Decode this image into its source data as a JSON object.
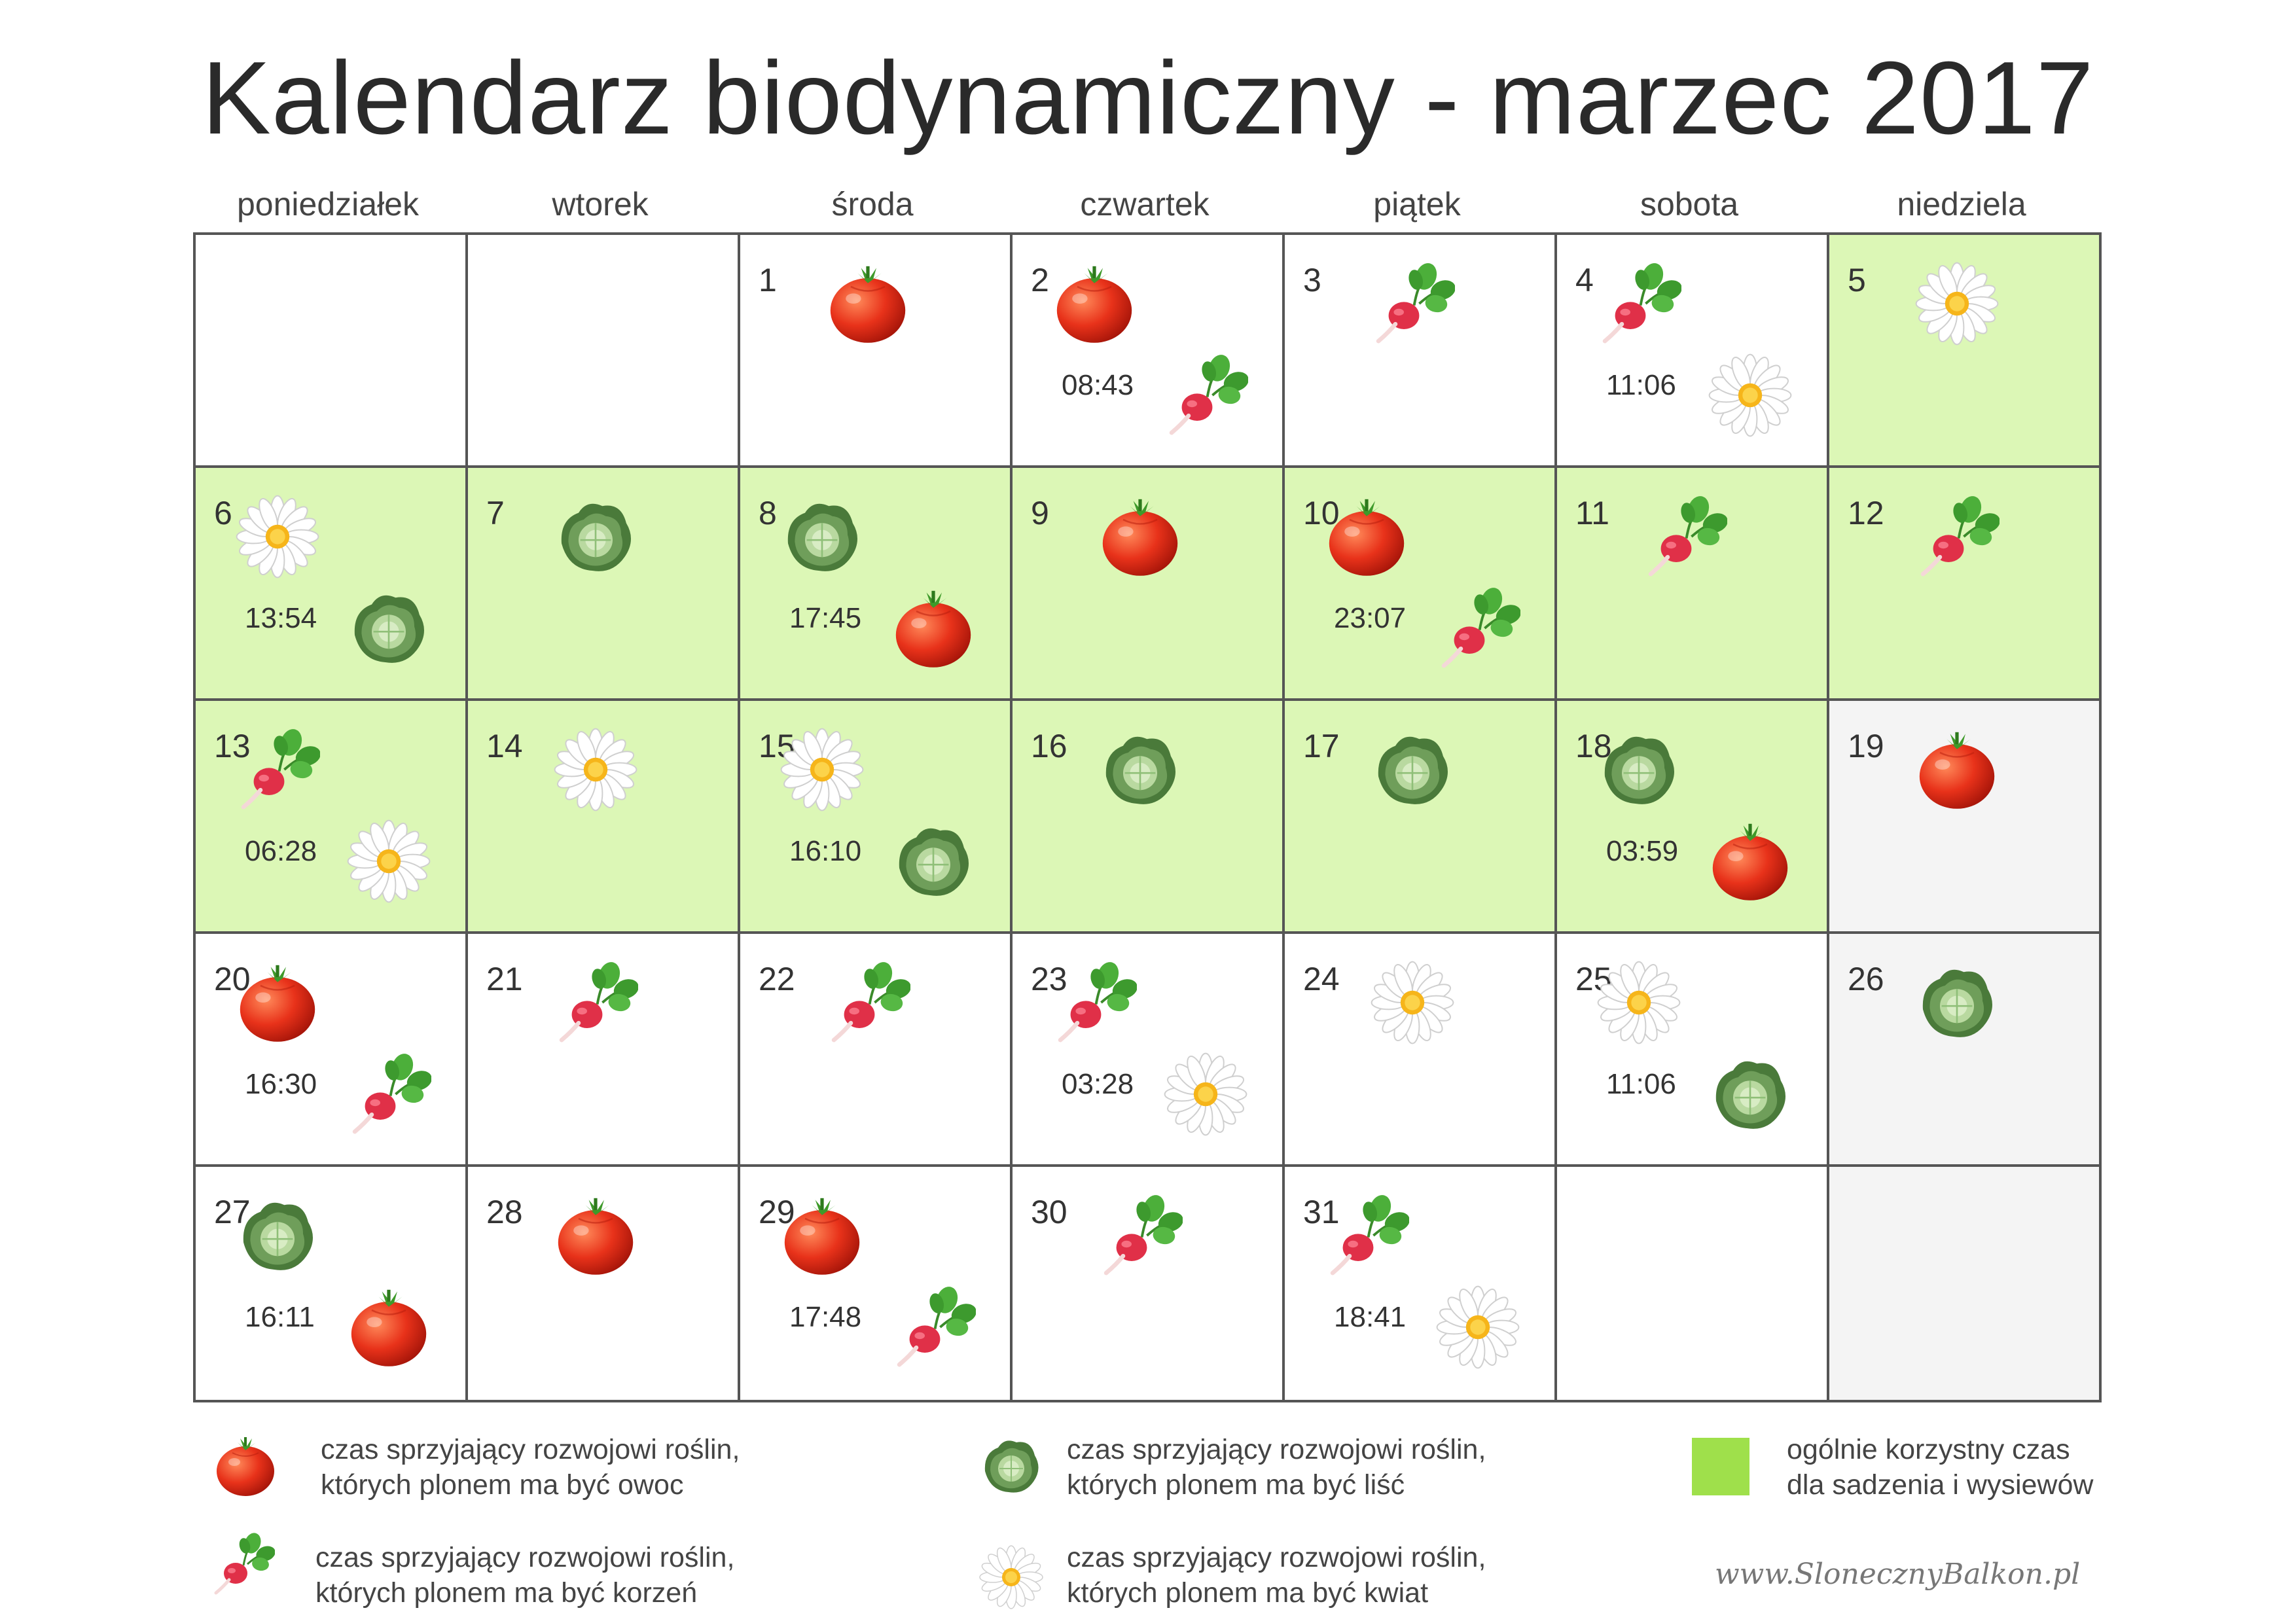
{
  "title": "Kalendarz biodynamiczny - marzec 2017",
  "weekdays": [
    "poniedziałek",
    "wtorek",
    "środa",
    "czwartek",
    "piątek",
    "sobota",
    "niedziela"
  ],
  "colors": {
    "green_cell": "#dcf7b6",
    "gray_cell": "#f4f4f4",
    "legend_green": "#9fe04b"
  },
  "icon_types": {
    "fruit": "tomato-icon",
    "root": "radish-icon",
    "leaf": "cabbage-icon",
    "flower": "daisy-icon"
  },
  "calendar": [
    [
      {
        "day": "",
        "bg": "white",
        "icons": [],
        "time": ""
      },
      {
        "day": "",
        "bg": "white",
        "icons": [],
        "time": ""
      },
      {
        "day": "1",
        "bg": "white",
        "icons": [
          "fruit"
        ],
        "time": ""
      },
      {
        "day": "2",
        "bg": "white",
        "icons": [
          "fruit",
          "root"
        ],
        "time": "08:43"
      },
      {
        "day": "3",
        "bg": "white",
        "icons": [
          "root"
        ],
        "time": ""
      },
      {
        "day": "4",
        "bg": "white",
        "icons": [
          "root",
          "flower"
        ],
        "time": "11:06"
      },
      {
        "day": "5",
        "bg": "green",
        "icons": [
          "flower"
        ],
        "time": ""
      }
    ],
    [
      {
        "day": "6",
        "bg": "green",
        "icons": [
          "flower",
          "leaf"
        ],
        "time": "13:54"
      },
      {
        "day": "7",
        "bg": "green",
        "icons": [
          "leaf"
        ],
        "time": ""
      },
      {
        "day": "8",
        "bg": "green",
        "icons": [
          "leaf",
          "fruit"
        ],
        "time": "17:45"
      },
      {
        "day": "9",
        "bg": "green",
        "icons": [
          "fruit"
        ],
        "time": ""
      },
      {
        "day": "10",
        "bg": "green",
        "icons": [
          "fruit",
          "root"
        ],
        "time": "23:07"
      },
      {
        "day": "11",
        "bg": "green",
        "icons": [
          "root"
        ],
        "time": ""
      },
      {
        "day": "12",
        "bg": "green",
        "icons": [
          "root"
        ],
        "time": ""
      }
    ],
    [
      {
        "day": "13",
        "bg": "green",
        "icons": [
          "root",
          "flower"
        ],
        "time": "06:28"
      },
      {
        "day": "14",
        "bg": "green",
        "icons": [
          "flower"
        ],
        "time": ""
      },
      {
        "day": "15",
        "bg": "green",
        "icons": [
          "flower",
          "leaf"
        ],
        "time": "16:10"
      },
      {
        "day": "16",
        "bg": "green",
        "icons": [
          "leaf"
        ],
        "time": ""
      },
      {
        "day": "17",
        "bg": "green",
        "icons": [
          "leaf"
        ],
        "time": ""
      },
      {
        "day": "18",
        "bg": "green",
        "icons": [
          "leaf",
          "fruit"
        ],
        "time": "03:59"
      },
      {
        "day": "19",
        "bg": "gray",
        "icons": [
          "fruit"
        ],
        "time": ""
      }
    ],
    [
      {
        "day": "20",
        "bg": "white",
        "icons": [
          "fruit",
          "root"
        ],
        "time": "16:30"
      },
      {
        "day": "21",
        "bg": "white",
        "icons": [
          "root"
        ],
        "time": ""
      },
      {
        "day": "22",
        "bg": "white",
        "icons": [
          "root"
        ],
        "time": ""
      },
      {
        "day": "23",
        "bg": "white",
        "icons": [
          "root",
          "flower"
        ],
        "time": "03:28"
      },
      {
        "day": "24",
        "bg": "white",
        "icons": [
          "flower"
        ],
        "time": ""
      },
      {
        "day": "25",
        "bg": "white",
        "icons": [
          "flower",
          "leaf"
        ],
        "time": "11:06"
      },
      {
        "day": "26",
        "bg": "gray",
        "icons": [
          "leaf"
        ],
        "time": ""
      }
    ],
    [
      {
        "day": "27",
        "bg": "white",
        "icons": [
          "leaf",
          "fruit"
        ],
        "time": "16:11"
      },
      {
        "day": "28",
        "bg": "white",
        "icons": [
          "fruit"
        ],
        "time": ""
      },
      {
        "day": "29",
        "bg": "white",
        "icons": [
          "fruit",
          "root"
        ],
        "time": "17:48"
      },
      {
        "day": "30",
        "bg": "white",
        "icons": [
          "root"
        ],
        "time": ""
      },
      {
        "day": "31",
        "bg": "white",
        "icons": [
          "root",
          "flower"
        ],
        "time": "18:41"
      },
      {
        "day": "",
        "bg": "white",
        "icons": [],
        "time": ""
      },
      {
        "day": "",
        "bg": "gray",
        "icons": [],
        "time": ""
      }
    ]
  ],
  "legend": {
    "fruit": {
      "line1": "czas sprzyjający rozwojowi roślin,",
      "line2": "których plonem ma być owoc",
      "icon": "tomato-icon"
    },
    "leaf": {
      "line1": "czas sprzyjający rozwojowi roślin,",
      "line2": "których plonem ma być liść",
      "icon": "cabbage-icon"
    },
    "green": {
      "line1": "ogólnie korzystny czas",
      "line2": "dla sadzenia i wysiewów"
    },
    "root": {
      "line1": "czas sprzyjający rozwojowi roślin,",
      "line2": "których plonem ma być korzeń",
      "icon": "radish-icon"
    },
    "flower": {
      "line1": "czas sprzyjający rozwojowi roślin,",
      "line2": "których plonem ma być kwiat",
      "icon": "daisy-icon"
    }
  },
  "website": "www.SlonecznyBalkon.pl"
}
